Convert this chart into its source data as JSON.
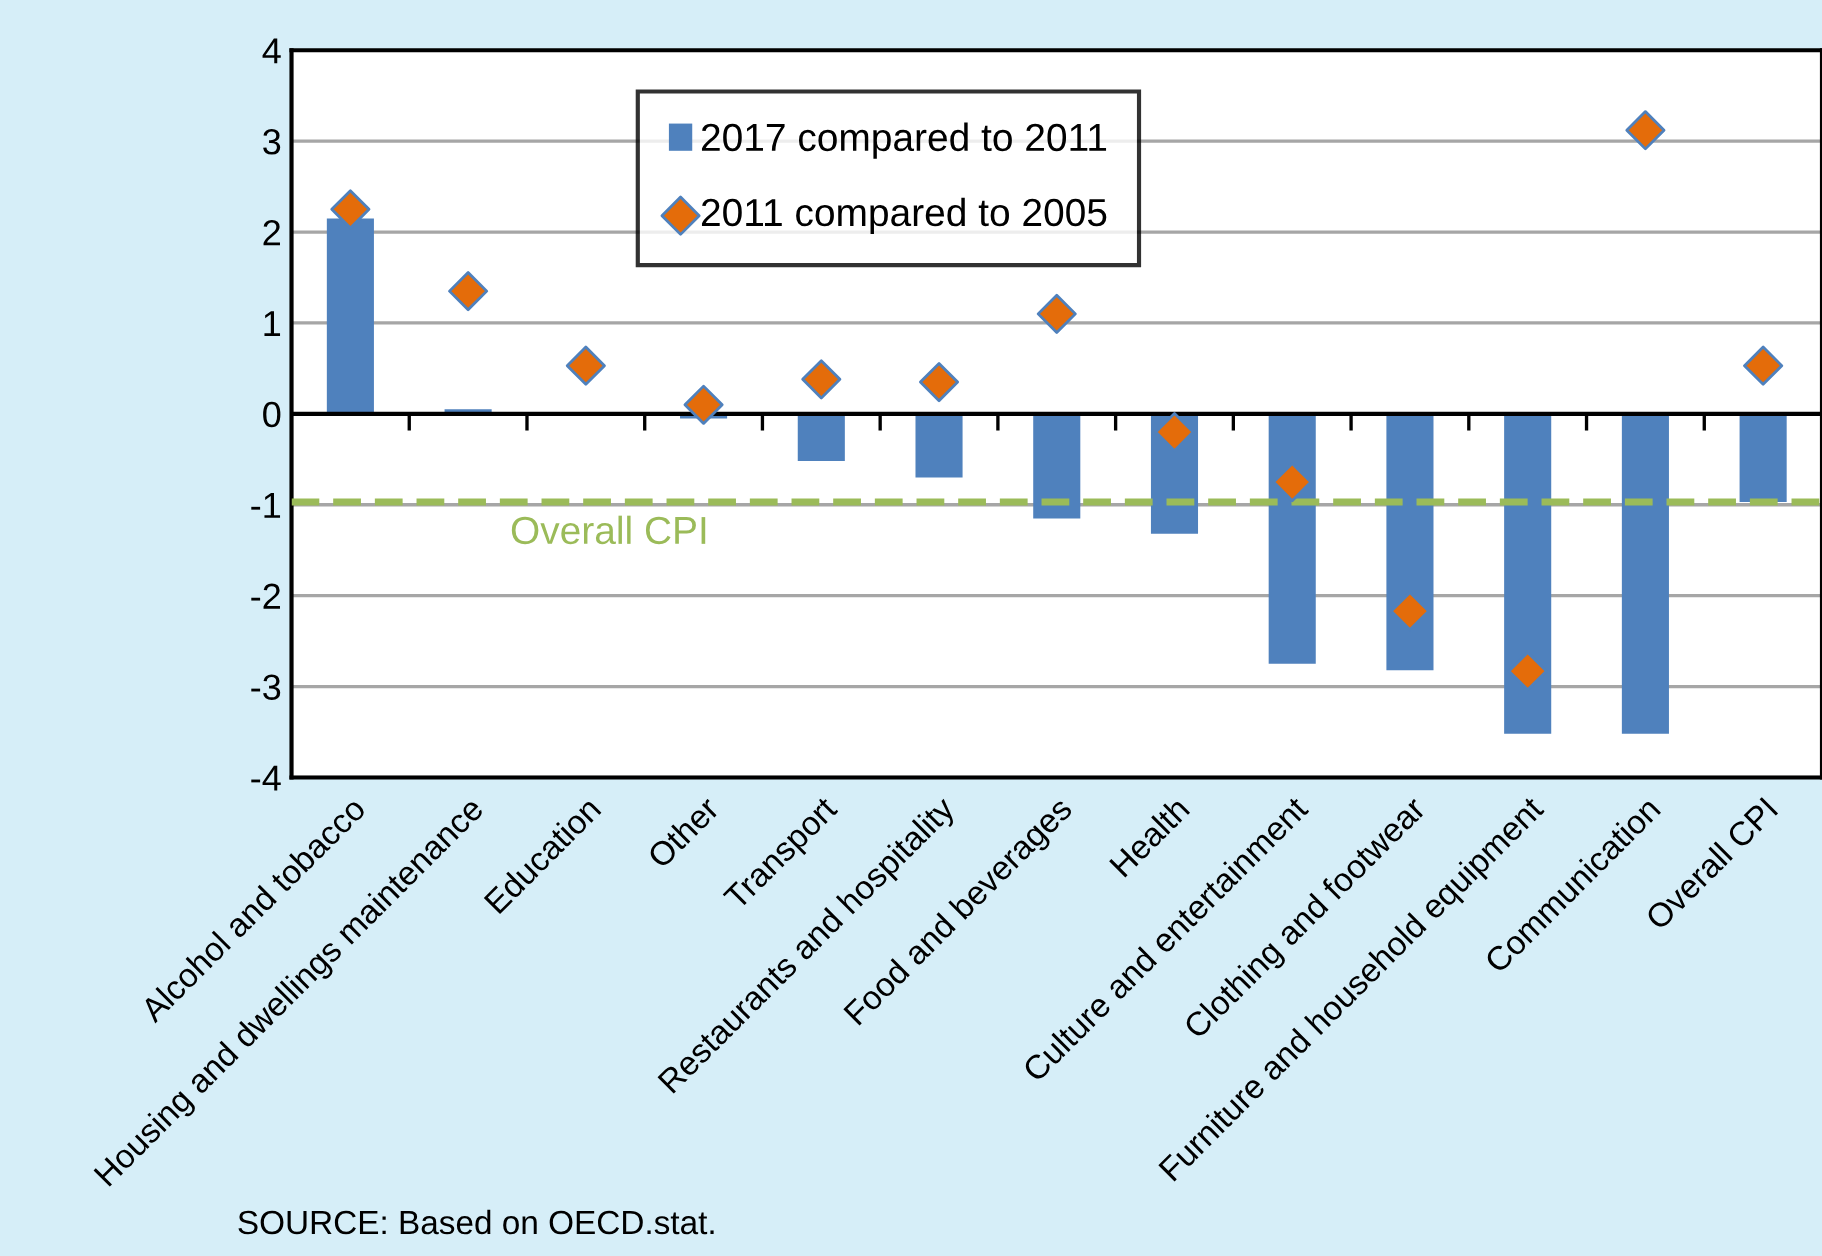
{
  "chart_data": {
    "type": "bar",
    "categories": [
      "Alcohol and tobacco",
      "Housing and dwellings maintenance",
      "Education",
      "Other",
      "Transport",
      "Restaurants and hospitality",
      "Food and beverages",
      "Health",
      "Culture and entertainment",
      "Clothing and footwear",
      "Furniture and household equipment",
      "Communication",
      "Overall CPI"
    ],
    "series": [
      {
        "name": "2017 compared to 2011",
        "color": "#4f81bd",
        "values": [
          2.15,
          0.05,
          0,
          -0.05,
          -0.52,
          -0.7,
          -1.15,
          -1.32,
          -2.75,
          -2.82,
          -3.52,
          -3.52,
          -0.97
        ]
      },
      {
        "name": "2011 compared to 2005",
        "type": "scatter",
        "marker": "diamond",
        "color": "#e46c0a",
        "values": [
          2.25,
          1.35,
          0.53,
          0.1,
          0.38,
          0.35,
          1.1,
          -0.2,
          -0.75,
          -2.17,
          -2.83,
          3.12,
          0.53
        ]
      }
    ],
    "ylim": [
      -4,
      4
    ],
    "yticks": [
      -4,
      -3,
      -2,
      -1,
      0,
      1,
      2,
      3,
      4
    ],
    "grid": "y",
    "legend": "top",
    "ref_lines": [
      {
        "axis": "y",
        "value": -0.97,
        "label": "Overall CPI",
        "color": "#9bbb59",
        "line_style": "dashed"
      }
    ],
    "annotations": [
      "SOURCE: Based on OECD.stat."
    ]
  }
}
